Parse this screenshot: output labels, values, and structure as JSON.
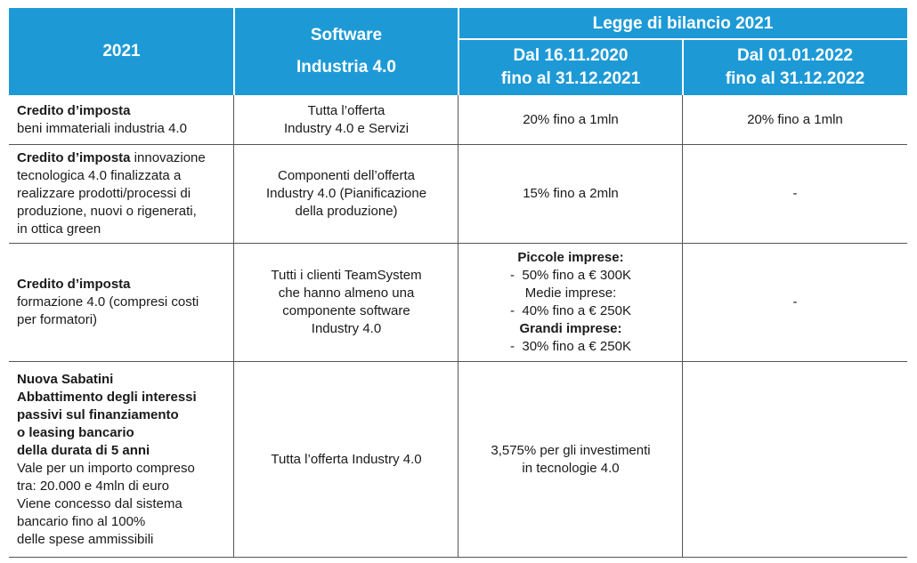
{
  "header": {
    "col_year": "2021",
    "col_software_line1": "Software",
    "col_software_line2": "Industria 4.0",
    "legge": "Legge di bilancio 2021",
    "period1_line1": "Dal 16.11.2020",
    "period1_line2": "fino al 31.12.2021",
    "period2_line1": "Dal  01.01.2022",
    "period2_line2": "fino al 31.12.2022"
  },
  "rows": [
    {
      "title": "Credito d’imposta",
      "desc": "beni immateriali industria 4.0",
      "software_lines": [
        "Tutta l’offerta",
        "Industry 4.0 e Servizi"
      ],
      "p1": "20% fino a 1mln",
      "p2": "20% fino a 1mln"
    },
    {
      "title": "Credito d’imposta",
      "title_suffix": " innovazione",
      "desc_lines": [
        "tecnologica 4.0 finalizzata a",
        "realizzare prodotti/processi di",
        "produzione, nuovi o rigenerati,",
        "in ottica green"
      ],
      "software_lines": [
        "Componenti dell’offerta",
        "Industry 4.0 (Pianificazione",
        "della produzione)"
      ],
      "p1": "15% fino a 2mln",
      "p2": "-"
    },
    {
      "title": "Credito d’imposta",
      "desc_lines": [
        "formazione 4.0 (compresi costi",
        "per formatori)"
      ],
      "software_lines": [
        "Tutti i clienti TeamSystem",
        "che hanno almeno una",
        "componente software",
        "Industry 4.0"
      ],
      "p1_small_title": "Piccole imprese:",
      "p1_small_value": "-  50% fino a € 300K",
      "p1_medium_title": "Medie imprese:",
      "p1_medium_value": "-  40% fino a € 250K",
      "p1_large_title": "Grandi imprese:",
      "p1_large_value": "-  30% fino a € 250K",
      "p2": "-"
    },
    {
      "title_lines": [
        "Nuova Sabatini",
        "Abbattimento degli interessi",
        "passivi sul finanziamento",
        "o leasing bancario",
        "della durata di 5 anni"
      ],
      "desc_lines": [
        "Vale per un importo compreso",
        "tra: 20.000 e 4mln di euro",
        "Viene concesso dal sistema",
        "bancario fino al 100%",
        "delle spese ammissibili"
      ],
      "software": "Tutta l’offerta Industry 4.0",
      "p1_lines": [
        "3,575% per gli investimenti",
        "in tecnologie 4.0"
      ],
      "p2": ""
    }
  ],
  "colors": {
    "header_blue": "#1d9ad6",
    "text": "#1a1a1a",
    "grid": "#555555"
  }
}
